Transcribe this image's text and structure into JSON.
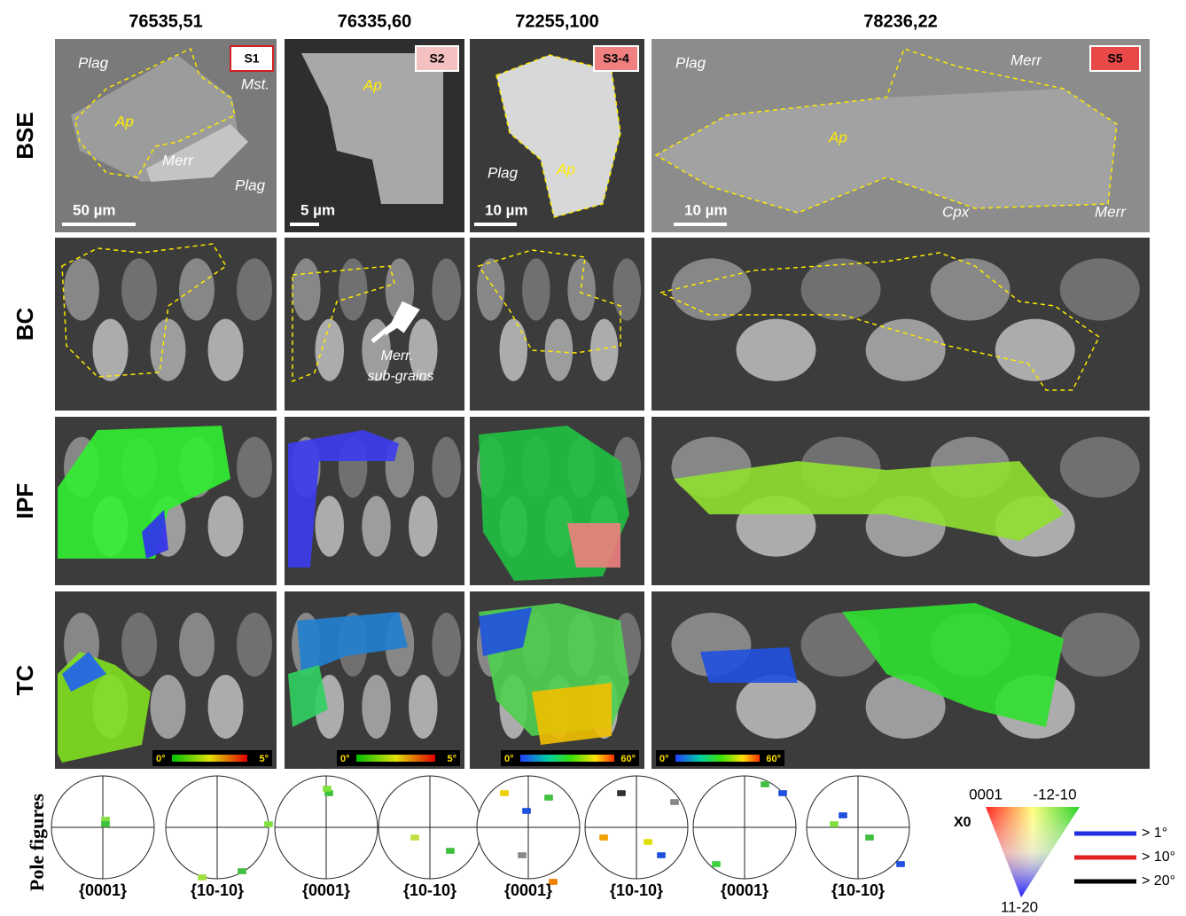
{
  "columns": [
    "76535,51",
    "76335,60",
    "72255,100",
    "78236,22"
  ],
  "rows": [
    "BSE",
    "BC",
    "IPF",
    "TC"
  ],
  "sample_tags": [
    "S1",
    "S2",
    "S3-4",
    "S5"
  ],
  "bse_labels": [
    [
      "Plag",
      "Mst.",
      "Ap",
      "Merr",
      "Plag"
    ],
    [
      "Ap"
    ],
    [
      "Plag",
      "Ap"
    ],
    [
      "Plag",
      "Merr",
      "Ap",
      "Cpx",
      "Merr"
    ]
  ],
  "scale_bars": [
    "50 µm",
    "5 µm",
    "10 µm",
    "10 µm"
  ],
  "bc_annotation": [
    "Merr.",
    "sub-grains"
  ],
  "tc_colorbars": [
    [
      "0°",
      "5°"
    ],
    [
      "0°",
      "5°"
    ],
    [
      "0°",
      "60°"
    ],
    [
      "0°",
      "60°"
    ]
  ],
  "pole_figures": {
    "title": "Pole figures",
    "labels": [
      "{0001}",
      "{10-10}",
      "{0001}",
      "{10-10}",
      "{0001}",
      "{10-10}",
      "{0001}",
      "{10-10}"
    ]
  },
  "ipf_key": {
    "top_left": "0001",
    "top_right": "-12-10",
    "axis": "X0",
    "bottom": "11-20"
  },
  "boundary_legend": [
    "> 1°",
    "> 10°",
    "> 20°"
  ]
}
